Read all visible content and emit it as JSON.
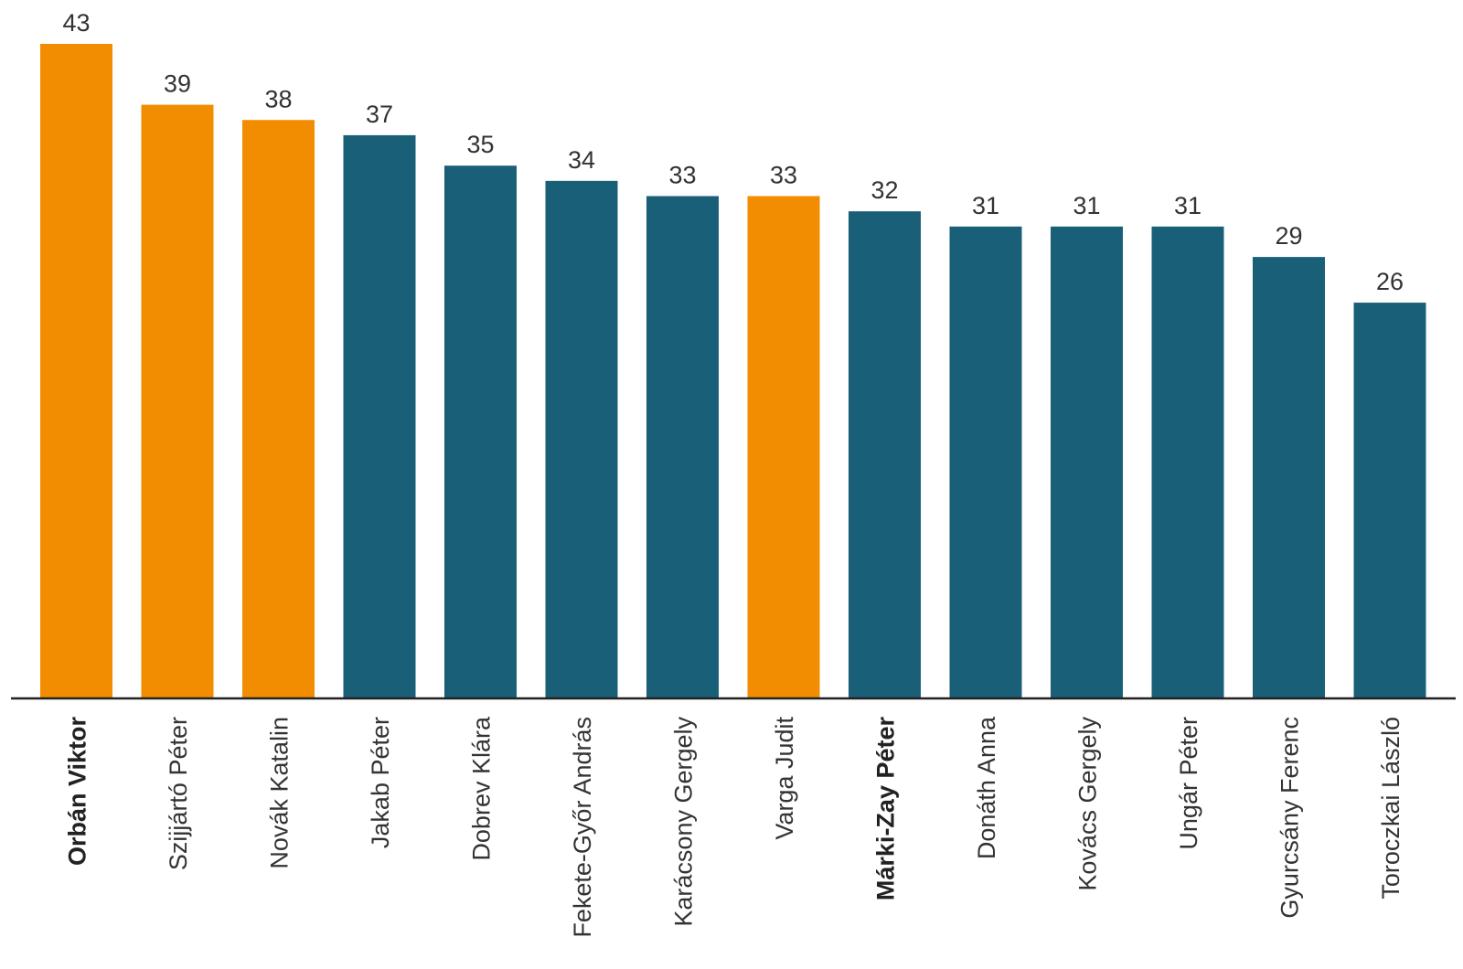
{
  "chart_data": {
    "type": "bar",
    "categories": [
      "Orbán Viktor",
      "Szijjártó Péter",
      "Novák Katalin",
      "Jakab Péter",
      "Dobrev Klára",
      "Fekete-Győr András",
      "Karácsony Gergely",
      "Varga Judit",
      "Márki-Zay Péter",
      "Donáth Anna",
      "Kovács Gergely",
      "Ungár Péter",
      "Gyurcsány Ferenc",
      "Toroczkai László"
    ],
    "values": [
      43,
      39,
      38,
      37,
      35,
      34,
      33,
      33,
      32,
      31,
      31,
      31,
      29,
      26
    ],
    "bar_colors": [
      "#f28c00",
      "#f28c00",
      "#f28c00",
      "#1a5f78",
      "#1a5f78",
      "#1a5f78",
      "#1a5f78",
      "#f28c00",
      "#1a5f78",
      "#1a5f78",
      "#1a5f78",
      "#1a5f78",
      "#1a5f78",
      "#1a5f78"
    ],
    "bold_categories": [
      "Orbán Viktor",
      "Márki-Zay Péter"
    ],
    "title": "",
    "xlabel": "",
    "ylabel": "",
    "ylim": [
      0,
      43
    ],
    "grid": false,
    "legend": "none"
  },
  "colors": {
    "government": "#f28c00",
    "opposition": "#1a5f78",
    "axis": "#222222",
    "text": "#333333"
  }
}
